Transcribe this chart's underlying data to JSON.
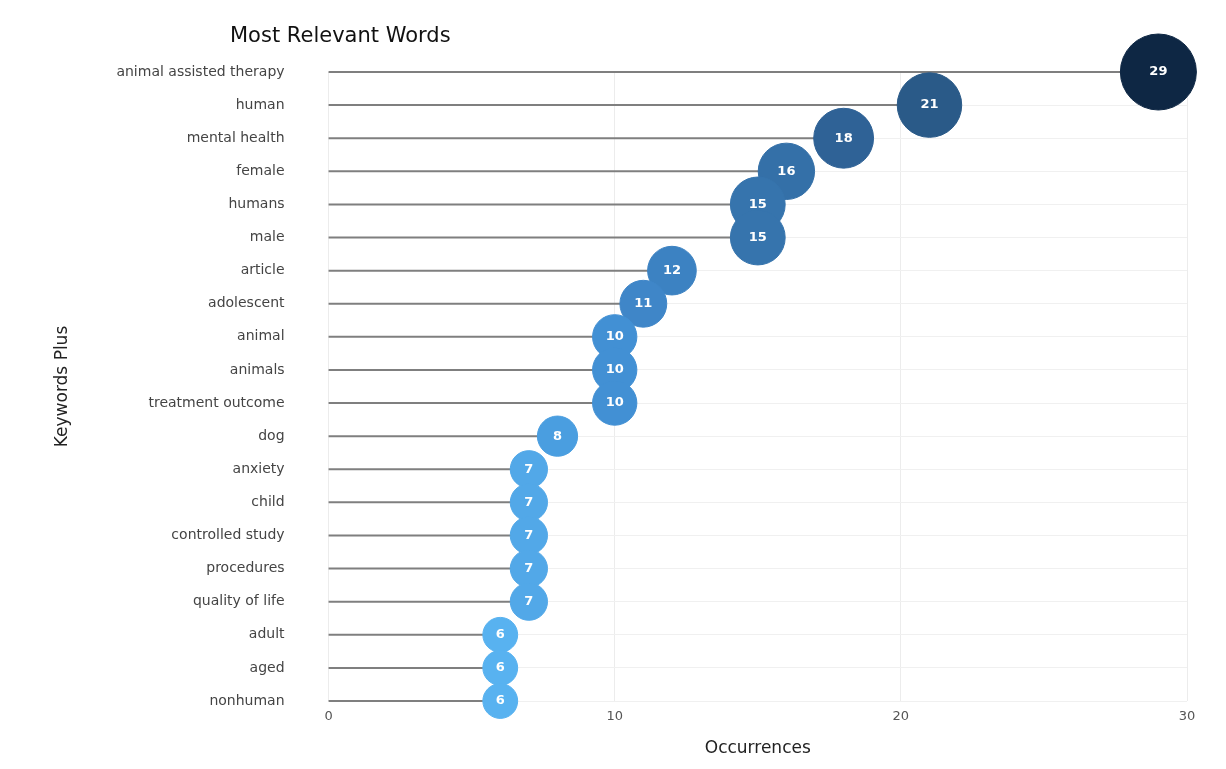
{
  "chart_data": {
    "type": "lollipop",
    "title": "Most Relevant Words",
    "xlabel": "Occurrences",
    "ylabel": "Keywords Plus",
    "orientation": "horizontal",
    "categories": [
      "animal assisted therapy",
      "human",
      "mental health",
      "female",
      "humans",
      "male",
      "article",
      "adolescent",
      "animal",
      "animals",
      "treatment outcome",
      "dog",
      "anxiety",
      "child",
      "controlled study",
      "procedures",
      "quality of life",
      "adult",
      "aged",
      "nonhuman"
    ],
    "values": [
      29,
      21,
      18,
      16,
      15,
      15,
      12,
      11,
      10,
      10,
      10,
      8,
      7,
      7,
      7,
      7,
      7,
      6,
      6,
      6
    ],
    "sizes": [
      1,
      0.72,
      0.62,
      0.55,
      0.52,
      0.52,
      0.41,
      0.38,
      0.34,
      0.34,
      0.34,
      0.28,
      0.24,
      0.24,
      0.24,
      0.24,
      0.24,
      0.21,
      0.21,
      0.21
    ],
    "colors": [
      "#0e2744",
      "#2a5a88",
      "#2f6296",
      "#3470a8",
      "#3674ad",
      "#3674ad",
      "#3c82c2",
      "#3f86c8",
      "#4290d4",
      "#4290d4",
      "#4290d4",
      "#4a9ee0",
      "#52a8e8",
      "#52a8e8",
      "#52a8e8",
      "#52a8e8",
      "#52a8e8",
      "#58b2f0",
      "#58b2f0",
      "#58b2f0"
    ],
    "xlim": [
      0,
      30
    ],
    "xticks": [
      0,
      10,
      20,
      30
    ],
    "grid": true,
    "legend": false,
    "marker": "circle",
    "data_labels": true
  }
}
